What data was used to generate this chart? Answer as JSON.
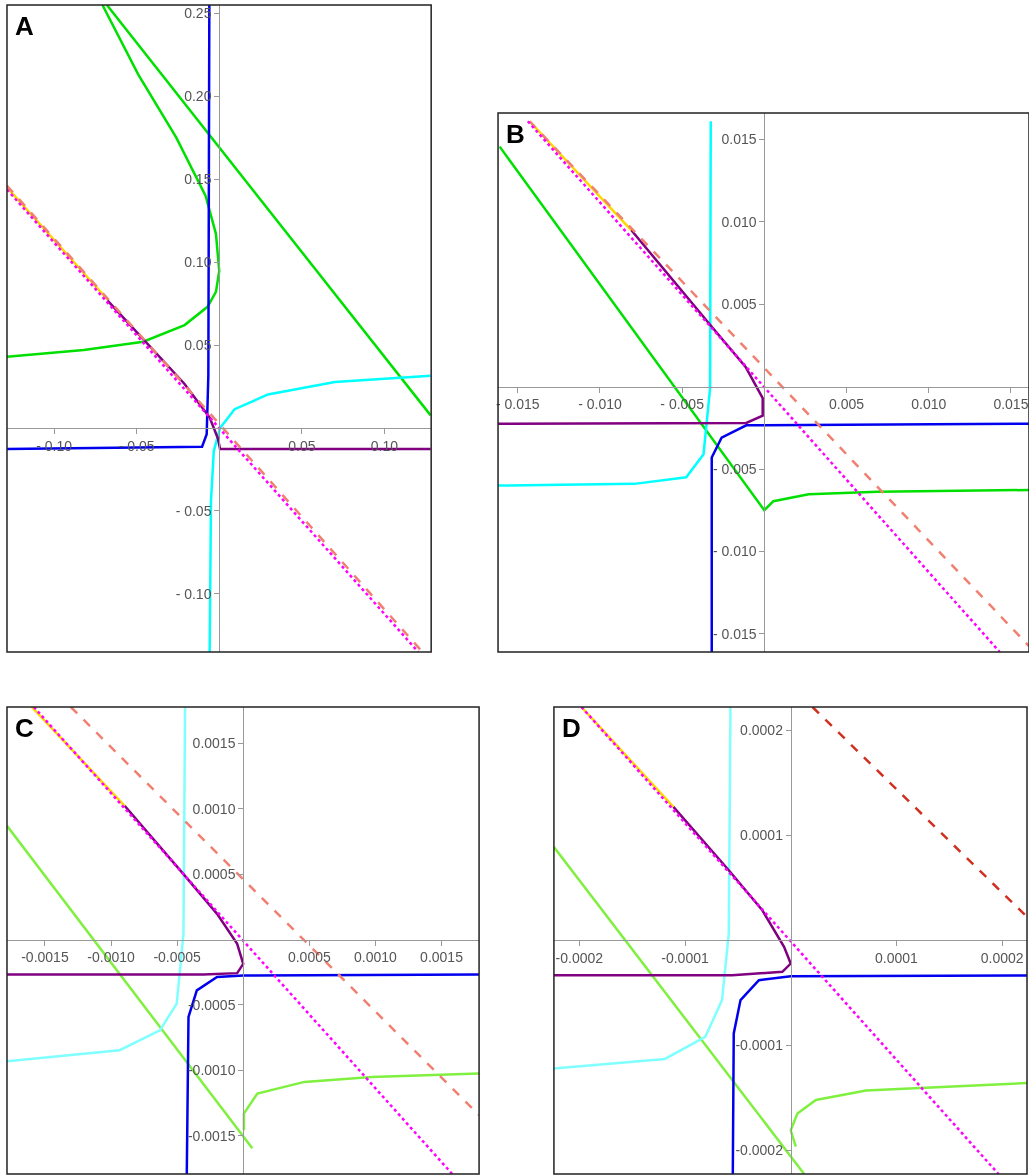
{
  "chart_data": [
    {
      "type": "line",
      "title": "A",
      "xlim": [
        -0.1285,
        0.1283
      ],
      "ylim": [
        -0.135,
        0.2549
      ],
      "xticks": [
        {
          "value": -0.1,
          "label": "- 0.10"
        },
        {
          "value": -0.05,
          "label": "- 0.05"
        },
        {
          "value": 0.05,
          "label": "0.05"
        },
        {
          "value": 0.1,
          "label": "0.10"
        }
      ],
      "yticks": [
        {
          "value": -0.1,
          "label": "- 0.10"
        },
        {
          "value": -0.05,
          "label": "- 0.05"
        },
        {
          "value": 0.05,
          "label": "0.05"
        },
        {
          "value": 0.1,
          "label": "0.10"
        },
        {
          "value": 0.15,
          "label": "0.15"
        },
        {
          "value": 0.2,
          "label": "0.20"
        },
        {
          "value": 0.25,
          "label": "0.25"
        }
      ],
      "series": [
        {
          "color": "#00e000",
          "line_style": "solid",
          "x": [
            -0.068,
            0.128
          ],
          "values": [
            0.2549,
            0.0076
          ]
        },
        {
          "color": "#00e000",
          "line_style": "solid",
          "x": [
            -0.0707,
            -0.049,
            -0.026,
            -0.0083,
            -0.002,
            0,
            -0.002,
            -0.0071,
            -0.021,
            -0.046,
            -0.082,
            -0.1285
          ],
          "values": [
            0.2549,
            0.213,
            0.175,
            0.14,
            0.117,
            0.0946,
            0.082,
            0.073,
            0.062,
            0.052,
            0.047,
            0.043
          ]
        },
        {
          "color": "#0000ee",
          "line_style": "solid",
          "x": [
            -0.006,
            -0.0066,
            -0.0076,
            -0.0104,
            -0.1285
          ],
          "values": [
            0.2549,
            0.0315,
            -0.0038,
            -0.0113,
            -0.0126
          ]
        },
        {
          "color": "#00ffff",
          "line_style": "solid",
          "x": [
            -0.0058,
            -0.005,
            -0.0033,
            0.0005,
            0.0093,
            0.0295,
            0.07,
            0.128
          ],
          "values": [
            -0.135,
            -0.044,
            -0.0139,
            0,
            0.0113,
            0.0202,
            0.0277,
            0.0315
          ]
        },
        {
          "color": "#800080",
          "line_style": "solid",
          "x": [
            -0.0677,
            -0.021,
            -0.0058,
            -0.0008,
            0.0005,
            0.128
          ],
          "values": [
            0.0769,
            0.0265,
            0.0063,
            -0.0063,
            -0.0126,
            -0.0126
          ]
        },
        {
          "color": "#ffd700",
          "line_style": "solid",
          "x": [
            -0.1285,
            -0.0677
          ],
          "values": [
            0.145,
            0.0774
          ]
        },
        {
          "color": "#f08070",
          "line_style": "dashed",
          "x": [
            -0.1285,
            0.123
          ],
          "values": [
            0.146,
            -0.135
          ]
        },
        {
          "color": "#ff00ff",
          "line_style": "dotted",
          "x": [
            -0.1285,
            0.1205
          ],
          "values": [
            0.1437,
            -0.135
          ]
        }
      ]
    },
    {
      "type": "line",
      "title": "B",
      "xlim": [
        -0.0162,
        0.0161
      ],
      "ylim": [
        -0.0161,
        0.0166
      ],
      "xticks": [
        {
          "value": -0.015,
          "label": "- 0.015"
        },
        {
          "value": -0.01,
          "label": "- 0.010"
        },
        {
          "value": -0.005,
          "label": "- 0.005"
        },
        {
          "value": 0.005,
          "label": "0.005"
        },
        {
          "value": 0.01,
          "label": "0.010"
        },
        {
          "value": 0.015,
          "label": "0.015"
        }
      ],
      "yticks": [
        {
          "value": -0.015,
          "label": "- 0.015"
        },
        {
          "value": -0.01,
          "label": "- 0.010"
        },
        {
          "value": -0.005,
          "label": "- 0.005"
        },
        {
          "value": 0.005,
          "label": "0.005"
        },
        {
          "value": 0.01,
          "label": "0.010"
        },
        {
          "value": 0.015,
          "label": "0.015"
        }
      ],
      "series": [
        {
          "color": "#00e000",
          "line_style": "solid",
          "x": [
            -0.0161,
            0,
            0.00055,
            0.0027,
            0.0069,
            0.0161
          ],
          "values": [
            0.01456,
            -0.0075,
            -0.00695,
            -0.00653,
            -0.00638,
            -0.00627
          ]
        },
        {
          "color": "#00ffff",
          "line_style": "solid",
          "x": [
            -0.00326,
            -0.0033,
            -0.0037,
            -0.00475,
            -0.0079,
            -0.0162
          ],
          "values": [
            0.0161,
            -0.0001,
            -0.0041,
            -0.0055,
            -0.0059,
            -0.006
          ]
        },
        {
          "color": "#0000ee",
          "line_style": "solid",
          "x": [
            -0.0032,
            -0.0032,
            -0.0026,
            -0.0011,
            0.0161
          ],
          "values": [
            -0.0161,
            -0.0043,
            -0.0031,
            -0.00235,
            -0.00225
          ]
        },
        {
          "color": "#800080",
          "line_style": "solid",
          "x": [
            -0.0081,
            -0.0033,
            -0.00114,
            -0.0001,
            -0.0001,
            -0.0011,
            -0.0162
          ],
          "values": [
            0.0095,
            0.00375,
            0.0012,
            -0.0007,
            -0.00176,
            -0.0022,
            -0.00225
          ]
        },
        {
          "color": "#ffd700",
          "line_style": "solid",
          "x": [
            -0.01428,
            -0.0081
          ],
          "values": [
            0.0161,
            0.0095
          ]
        },
        {
          "color": "#f08070",
          "line_style": "dashed",
          "x": [
            -0.01428,
            0.0161
          ],
          "values": [
            0.0161,
            -0.01574
          ]
        },
        {
          "color": "#ff00ff",
          "line_style": "dotted",
          "x": [
            -0.01439,
            0.01432
          ],
          "values": [
            0.0161,
            -0.0161
          ]
        }
      ]
    },
    {
      "type": "line",
      "title": "C",
      "xlim": [
        -0.001787,
        0.001784
      ],
      "ylim": [
        -0.001792,
        0.001777
      ],
      "xticks": [
        {
          "value": -0.0015,
          "label": "-0.0015"
        },
        {
          "value": -0.001,
          "label": "-0.0010"
        },
        {
          "value": -0.0005,
          "label": "-0.0005"
        },
        {
          "value": 0.0005,
          "label": "0.0005"
        },
        {
          "value": 0.001,
          "label": "0.0010"
        },
        {
          "value": 0.0015,
          "label": "0.0015"
        }
      ],
      "yticks": [
        {
          "value": -0.0015,
          "label": "-0.0015"
        },
        {
          "value": -0.001,
          "label": "-0.0010"
        },
        {
          "value": -0.0005,
          "label": "-0.0005"
        },
        {
          "value": 0.0005,
          "label": "0.0005"
        },
        {
          "value": 0.001,
          "label": "0.0010"
        },
        {
          "value": 0.0015,
          "label": "0.0015"
        }
      ],
      "series": [
        {
          "color": "#80f040",
          "line_style": "solid",
          "x": [
            -0.001787,
            6.86e-05
          ],
          "values": [
            0.000869,
            -0.001596
          ]
        },
        {
          "color": "#80f040",
          "line_style": "solid",
          "x": [
            5e-06,
            5e-06,
            0.000107,
            0.000463,
            0.000971,
            0.001784
          ],
          "values": [
            -0.001457,
            -0.00133,
            -0.001177,
            -0.001088,
            -0.00105,
            -0.001024
          ]
        },
        {
          "color": "#80ffff",
          "line_style": "solid",
          "x": [
            -0.00044,
            -0.000452,
            -0.000503,
            -0.00063,
            -0.000935,
            -0.001787
          ],
          "values": [
            0.001777,
            4.32e-05,
            -0.00049,
            -0.000694,
            -0.000846,
            -0.00093
          ]
        },
        {
          "color": "#0000ee",
          "line_style": "solid",
          "x": [
            -0.000427,
            -0.000414,
            -0.000351,
            -0.000198,
            0,
            0.001784
          ],
          "values": [
            -0.001792,
            -0.000592,
            -0.000389,
            -0.000287,
            -0.000275,
            -0.000267
          ]
        },
        {
          "color": "#800080",
          "line_style": "solid",
          "x": [
            -0.000897,
            -0.000452,
            -0.000198,
            -4.58e-05,
            0,
            -4.58e-05,
            -0.0003,
            -0.001787
          ],
          "values": [
            0.001022,
            0.0005,
            0.000196,
            -3.3e-05,
            -0.000186,
            -0.000257,
            -0.000267,
            -0.000267
          ]
        },
        {
          "color": "#ffd700",
          "line_style": "solid",
          "x": [
            -0.0016,
            -0.000897
          ],
          "values": [
            0.001777,
            0.001022
          ]
        },
        {
          "color": "#f08070",
          "line_style": "dashed",
          "x": [
            -0.001304,
            0.001784
          ],
          "values": [
            0.001777,
            -0.001342
          ]
        },
        {
          "color": "#ff00ff",
          "line_style": "dotted",
          "x": [
            -0.001584,
            0.001581
          ],
          "values": [
            0.001777,
            -0.001792
          ]
        }
      ]
    },
    {
      "type": "line",
      "title": "D",
      "xlim": [
        -0.000224,
        0.0002235
      ],
      "ylim": [
        -0.0002225,
        0.000222
      ],
      "xticks": [
        {
          "value": -0.0002,
          "label": "-0.0002"
        },
        {
          "value": -0.0001,
          "label": "-0.0001"
        },
        {
          "value": 0.0001,
          "label": "0.0001"
        },
        {
          "value": 0.0002,
          "label": "0.0002"
        }
      ],
      "yticks": [
        {
          "value": -0.0002,
          "label": "-0.0002"
        },
        {
          "value": -0.0001,
          "label": "-0.0001"
        },
        {
          "value": 0.0001,
          "label": "0.0001"
        },
        {
          "value": 0.0002,
          "label": "0.0002"
        }
      ],
      "series": [
        {
          "color": "#80f040",
          "line_style": "solid",
          "x": [
            -0.000224,
            1.27e-05
          ],
          "values": [
            8.87e-05,
            -0.0002225
          ]
        },
        {
          "color": "#80f040",
          "line_style": "solid",
          "x": [
            4.8e-06,
            0,
            6.3e-06,
            2.38e-05,
            7.13e-05,
            0.0002235
          ],
          "values": [
            -0.0001965,
            -0.000181,
            -0.000165,
            -0.000152,
            -0.000143,
            -0.000136
          ]
        },
        {
          "color": "#80ffff",
          "line_style": "solid",
          "x": [
            -5.7e-05,
            -5.86e-05,
            -6.5e-05,
            -8.08e-05,
            -0.000119,
            -0.000224
          ],
          "values": [
            0.000222,
            6.3e-06,
            -5.7e-05,
            -9.19e-05,
            -0.000113,
            -0.000122
          ]
        },
        {
          "color": "#0000ee",
          "line_style": "solid",
          "x": [
            -5.48e-05,
            -5.39e-05,
            -4.75e-05,
            -3.01e-05,
            0,
            0.0002235
          ],
          "values": [
            -0.0002225,
            -8.87e-05,
            -5.7e-05,
            -3.8e-05,
            -3.42e-05,
            -3.36e-05
          ]
        },
        {
          "color": "#800080",
          "line_style": "solid",
          "x": [
            -0.000111,
            -5.86e-05,
            -2.69e-05,
            -6.3e-06,
            0,
            -7.9e-06,
            -5.55e-05,
            -0.000224
          ],
          "values": [
            0.000127,
            6.66e-05,
            2.85e-05,
            -6.3e-06,
            -2.22e-05,
            -3.01e-05,
            -3.33e-05,
            -3.33e-05
          ]
        },
        {
          "color": "#ffd700",
          "line_style": "solid",
          "x": [
            -0.000198,
            -0.000111
          ],
          "values": [
            0.000222,
            0.000127
          ]
        },
        {
          "color": "#d03020",
          "line_style": "dashed",
          "x": [
            2.06e-05,
            0.0002235
          ],
          "values": [
            0.000222,
            2.22e-05
          ]
        },
        {
          "color": "#ff00ff",
          "line_style": "dotted",
          "x": [
            -0.000198,
            0.0001965
          ],
          "values": [
            0.000222,
            -0.0002225
          ]
        }
      ]
    }
  ]
}
